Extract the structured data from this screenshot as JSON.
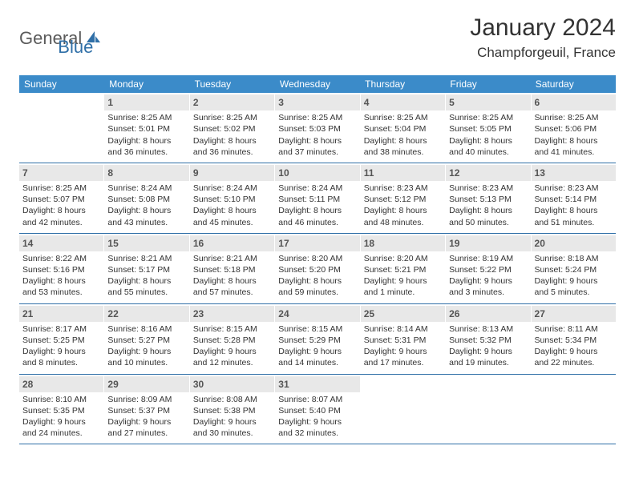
{
  "logo": {
    "text1": "General",
    "text2": "Blue"
  },
  "title": "January 2024",
  "location": "Champforgeuil, France",
  "colors": {
    "header_bg": "#3b8bc9",
    "header_text": "#ffffff",
    "daynum_bg": "#e8e8e8",
    "daynum_text": "#555555",
    "border": "#2f6fa7",
    "body_text": "#333333",
    "logo_gray": "#5a5a5a",
    "logo_blue": "#2f6fa7",
    "background": "#ffffff"
  },
  "typography": {
    "title_fontsize": 30,
    "location_fontsize": 17,
    "weekday_fontsize": 12,
    "daynum_fontsize": 12,
    "body_fontsize": 10.5,
    "logo_fontsize": 22
  },
  "layout": {
    "columns": 7,
    "rows": 5,
    "start_weekday_index": 1
  },
  "weekdays": [
    "Sunday",
    "Monday",
    "Tuesday",
    "Wednesday",
    "Thursday",
    "Friday",
    "Saturday"
  ],
  "days": [
    {
      "n": 1,
      "sunrise": "8:25 AM",
      "sunset": "5:01 PM",
      "dayl1": "Daylight: 8 hours",
      "dayl2": "and 36 minutes."
    },
    {
      "n": 2,
      "sunrise": "8:25 AM",
      "sunset": "5:02 PM",
      "dayl1": "Daylight: 8 hours",
      "dayl2": "and 36 minutes."
    },
    {
      "n": 3,
      "sunrise": "8:25 AM",
      "sunset": "5:03 PM",
      "dayl1": "Daylight: 8 hours",
      "dayl2": "and 37 minutes."
    },
    {
      "n": 4,
      "sunrise": "8:25 AM",
      "sunset": "5:04 PM",
      "dayl1": "Daylight: 8 hours",
      "dayl2": "and 38 minutes."
    },
    {
      "n": 5,
      "sunrise": "8:25 AM",
      "sunset": "5:05 PM",
      "dayl1": "Daylight: 8 hours",
      "dayl2": "and 40 minutes."
    },
    {
      "n": 6,
      "sunrise": "8:25 AM",
      "sunset": "5:06 PM",
      "dayl1": "Daylight: 8 hours",
      "dayl2": "and 41 minutes."
    },
    {
      "n": 7,
      "sunrise": "8:25 AM",
      "sunset": "5:07 PM",
      "dayl1": "Daylight: 8 hours",
      "dayl2": "and 42 minutes."
    },
    {
      "n": 8,
      "sunrise": "8:24 AM",
      "sunset": "5:08 PM",
      "dayl1": "Daylight: 8 hours",
      "dayl2": "and 43 minutes."
    },
    {
      "n": 9,
      "sunrise": "8:24 AM",
      "sunset": "5:10 PM",
      "dayl1": "Daylight: 8 hours",
      "dayl2": "and 45 minutes."
    },
    {
      "n": 10,
      "sunrise": "8:24 AM",
      "sunset": "5:11 PM",
      "dayl1": "Daylight: 8 hours",
      "dayl2": "and 46 minutes."
    },
    {
      "n": 11,
      "sunrise": "8:23 AM",
      "sunset": "5:12 PM",
      "dayl1": "Daylight: 8 hours",
      "dayl2": "and 48 minutes."
    },
    {
      "n": 12,
      "sunrise": "8:23 AM",
      "sunset": "5:13 PM",
      "dayl1": "Daylight: 8 hours",
      "dayl2": "and 50 minutes."
    },
    {
      "n": 13,
      "sunrise": "8:23 AM",
      "sunset": "5:14 PM",
      "dayl1": "Daylight: 8 hours",
      "dayl2": "and 51 minutes."
    },
    {
      "n": 14,
      "sunrise": "8:22 AM",
      "sunset": "5:16 PM",
      "dayl1": "Daylight: 8 hours",
      "dayl2": "and 53 minutes."
    },
    {
      "n": 15,
      "sunrise": "8:21 AM",
      "sunset": "5:17 PM",
      "dayl1": "Daylight: 8 hours",
      "dayl2": "and 55 minutes."
    },
    {
      "n": 16,
      "sunrise": "8:21 AM",
      "sunset": "5:18 PM",
      "dayl1": "Daylight: 8 hours",
      "dayl2": "and 57 minutes."
    },
    {
      "n": 17,
      "sunrise": "8:20 AM",
      "sunset": "5:20 PM",
      "dayl1": "Daylight: 8 hours",
      "dayl2": "and 59 minutes."
    },
    {
      "n": 18,
      "sunrise": "8:20 AM",
      "sunset": "5:21 PM",
      "dayl1": "Daylight: 9 hours",
      "dayl2": "and 1 minute."
    },
    {
      "n": 19,
      "sunrise": "8:19 AM",
      "sunset": "5:22 PM",
      "dayl1": "Daylight: 9 hours",
      "dayl2": "and 3 minutes."
    },
    {
      "n": 20,
      "sunrise": "8:18 AM",
      "sunset": "5:24 PM",
      "dayl1": "Daylight: 9 hours",
      "dayl2": "and 5 minutes."
    },
    {
      "n": 21,
      "sunrise": "8:17 AM",
      "sunset": "5:25 PM",
      "dayl1": "Daylight: 9 hours",
      "dayl2": "and 8 minutes."
    },
    {
      "n": 22,
      "sunrise": "8:16 AM",
      "sunset": "5:27 PM",
      "dayl1": "Daylight: 9 hours",
      "dayl2": "and 10 minutes."
    },
    {
      "n": 23,
      "sunrise": "8:15 AM",
      "sunset": "5:28 PM",
      "dayl1": "Daylight: 9 hours",
      "dayl2": "and 12 minutes."
    },
    {
      "n": 24,
      "sunrise": "8:15 AM",
      "sunset": "5:29 PM",
      "dayl1": "Daylight: 9 hours",
      "dayl2": "and 14 minutes."
    },
    {
      "n": 25,
      "sunrise": "8:14 AM",
      "sunset": "5:31 PM",
      "dayl1": "Daylight: 9 hours",
      "dayl2": "and 17 minutes."
    },
    {
      "n": 26,
      "sunrise": "8:13 AM",
      "sunset": "5:32 PM",
      "dayl1": "Daylight: 9 hours",
      "dayl2": "and 19 minutes."
    },
    {
      "n": 27,
      "sunrise": "8:11 AM",
      "sunset": "5:34 PM",
      "dayl1": "Daylight: 9 hours",
      "dayl2": "and 22 minutes."
    },
    {
      "n": 28,
      "sunrise": "8:10 AM",
      "sunset": "5:35 PM",
      "dayl1": "Daylight: 9 hours",
      "dayl2": "and 24 minutes."
    },
    {
      "n": 29,
      "sunrise": "8:09 AM",
      "sunset": "5:37 PM",
      "dayl1": "Daylight: 9 hours",
      "dayl2": "and 27 minutes."
    },
    {
      "n": 30,
      "sunrise": "8:08 AM",
      "sunset": "5:38 PM",
      "dayl1": "Daylight: 9 hours",
      "dayl2": "and 30 minutes."
    },
    {
      "n": 31,
      "sunrise": "8:07 AM",
      "sunset": "5:40 PM",
      "dayl1": "Daylight: 9 hours",
      "dayl2": "and 32 minutes."
    }
  ],
  "labels": {
    "sunrise_prefix": "Sunrise: ",
    "sunset_prefix": "Sunset: "
  }
}
